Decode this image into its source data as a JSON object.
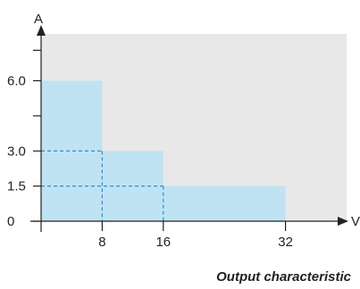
{
  "chart_data": {
    "type": "area",
    "title": "",
    "caption": "Output characteristic",
    "xlabel": "V",
    "ylabel": "A",
    "xlim": [
      0,
      40
    ],
    "ylim": [
      0,
      8
    ],
    "x_ticks": [
      {
        "value": 8,
        "label": "8"
      },
      {
        "value": 16,
        "label": "16"
      },
      {
        "value": 32,
        "label": "32"
      }
    ],
    "y_ticks": [
      {
        "value": 0,
        "label": "0"
      },
      {
        "value": 1.5,
        "label": "1.5"
      },
      {
        "value": 3,
        "label": "3.0"
      },
      {
        "value": 6,
        "label": "6.0"
      }
    ],
    "y_minor_ticks": [
      4.5,
      7.3
    ],
    "steps": [
      {
        "x_start": 0,
        "x_end": 8,
        "current": 6.0
      },
      {
        "x_start": 8,
        "x_end": 16,
        "current": 3.0
      },
      {
        "x_start": 16,
        "x_end": 32,
        "current": 1.5
      }
    ],
    "guides": [
      {
        "from_x": 0,
        "to_x": 8,
        "y": 3.0
      },
      {
        "from_x": 0,
        "to_x": 16,
        "y": 1.5
      }
    ],
    "colors": {
      "plot_background": "#e8e8e8",
      "fill": "#bfe3f3",
      "guide": "#2e8fc9",
      "axis": "#222222"
    },
    "grid": false
  }
}
